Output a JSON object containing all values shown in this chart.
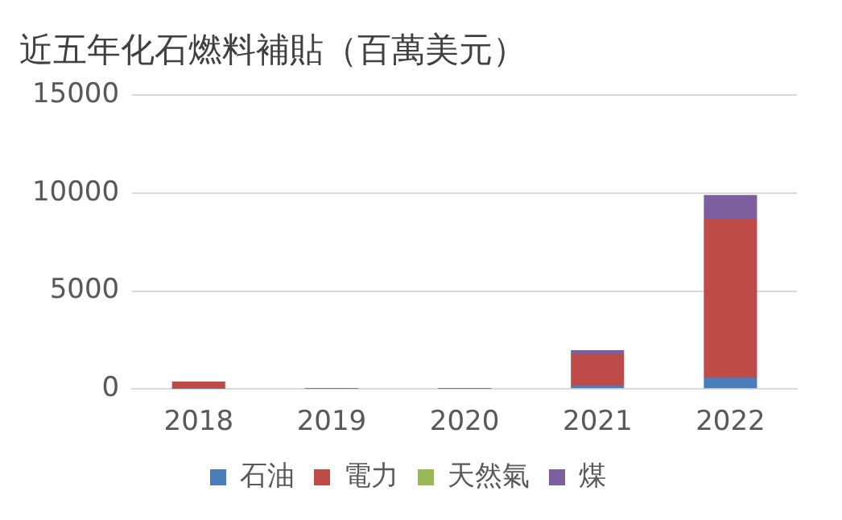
{
  "chart_data": {
    "type": "bar",
    "title": "近五年化石燃料補貼（百萬美元）",
    "categories": [
      "2018",
      "2019",
      "2020",
      "2021",
      "2022"
    ],
    "stacked": true,
    "series": [
      {
        "name": "石油",
        "color": "#4a7ebb",
        "values": [
          10,
          5,
          5,
          170,
          580
        ]
      },
      {
        "name": "電力",
        "color": "#be4b48",
        "values": [
          370,
          30,
          30,
          1610,
          8100
        ]
      },
      {
        "name": "天然氣",
        "color": "#98b954",
        "values": [
          0,
          0,
          0,
          0,
          0
        ]
      },
      {
        "name": "煤",
        "color": "#7d5fa0",
        "values": [
          0,
          0,
          0,
          200,
          1230
        ]
      }
    ],
    "ylim": [
      0,
      15000
    ],
    "yticks": [
      0,
      5000,
      10000,
      15000
    ],
    "grid": "y",
    "legend": "bottom"
  }
}
